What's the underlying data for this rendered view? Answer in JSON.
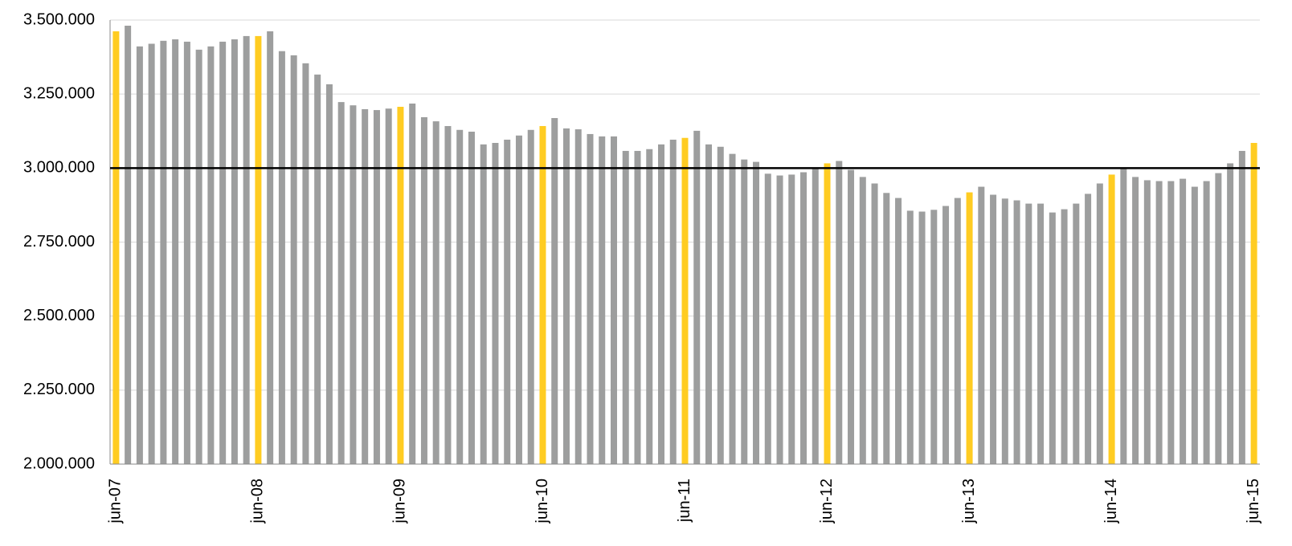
{
  "chart_data": {
    "type": "bar",
    "categories": [
      "jun-07",
      null,
      null,
      null,
      null,
      null,
      null,
      null,
      null,
      null,
      null,
      null,
      "jun-08",
      null,
      null,
      null,
      null,
      null,
      null,
      null,
      null,
      null,
      null,
      null,
      "jun-09",
      null,
      null,
      null,
      null,
      null,
      null,
      null,
      null,
      null,
      null,
      null,
      "jun-10",
      null,
      null,
      null,
      null,
      null,
      null,
      null,
      null,
      null,
      null,
      null,
      "jun-11",
      null,
      null,
      null,
      null,
      null,
      null,
      null,
      null,
      null,
      null,
      null,
      "jun-12",
      null,
      null,
      null,
      null,
      null,
      null,
      null,
      null,
      null,
      null,
      null,
      "jun-13",
      null,
      null,
      null,
      null,
      null,
      null,
      null,
      null,
      null,
      null,
      null,
      "jun-14",
      null,
      null,
      null,
      null,
      null,
      null,
      null,
      null,
      null,
      null,
      null,
      "jun-15"
    ],
    "values": [
      3462000,
      3481000,
      3411000,
      3420000,
      3430000,
      3435000,
      3427000,
      3400000,
      3411000,
      3427000,
      3435000,
      3446000,
      3446000,
      3462000,
      3395000,
      3381000,
      3354000,
      3316000,
      3283000,
      3223000,
      3212000,
      3199000,
      3196000,
      3201000,
      3207000,
      3218000,
      3172000,
      3158000,
      3142000,
      3129000,
      3123000,
      3080000,
      3085000,
      3096000,
      3110000,
      3129000,
      3142000,
      3169000,
      3134000,
      3131000,
      3115000,
      3107000,
      3107000,
      3058000,
      3058000,
      3064000,
      3080000,
      3096000,
      3102000,
      3126000,
      3080000,
      3072000,
      3048000,
      3029000,
      3021000,
      2981000,
      2975000,
      2978000,
      2986000,
      3000000,
      3016000,
      3024000,
      2994000,
      2970000,
      2948000,
      2916000,
      2899000,
      2856000,
      2853000,
      2859000,
      2872000,
      2899000,
      2918000,
      2937000,
      2910000,
      2897000,
      2891000,
      2880000,
      2880000,
      2850000,
      2861000,
      2880000,
      2913000,
      2948000,
      2978000,
      3000000,
      2970000,
      2959000,
      2956000,
      2956000,
      2964000,
      2937000,
      2956000,
      2983000,
      3016000,
      3058000,
      3085000
    ],
    "color": "#9d9e9e",
    "highlight_color": "#ffcc22",
    "reference_line": 3000000,
    "ylim": [
      2000000,
      3500000
    ],
    "yticks": [
      {
        "value": 2000000,
        "label": "2.000.000"
      },
      {
        "value": 2250000,
        "label": "2.250.000"
      },
      {
        "value": 2500000,
        "label": "2.500.000"
      },
      {
        "value": 2750000,
        "label": "2.750.000"
      },
      {
        "value": 3000000,
        "label": "3.000.000"
      },
      {
        "value": 3250000,
        "label": "3.250.000"
      },
      {
        "value": 3500000,
        "label": "3.500.000"
      }
    ],
    "grid": true
  }
}
